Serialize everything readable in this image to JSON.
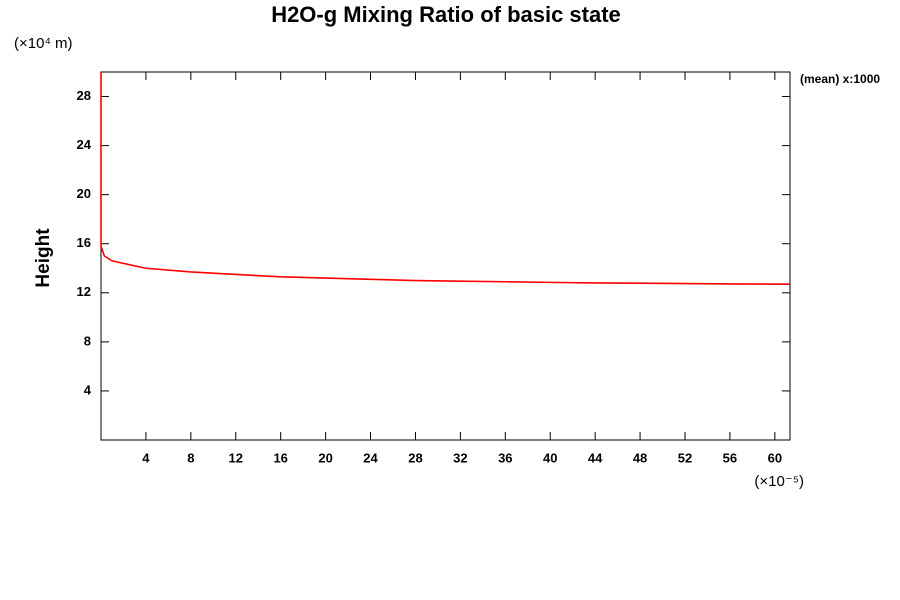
{
  "chart_data": {
    "type": "line",
    "title": "H2O-g Mixing Ratio of basic state",
    "y_unit_label": "(×10⁴ m)",
    "y_label": "Height",
    "x_unit_label": "(×10⁻⁵)",
    "annotation": "(mean) x:1000",
    "xlim": [
      0,
      61.35
    ],
    "ylim": [
      0,
      30
    ],
    "xticks": [
      4,
      8,
      12,
      16,
      20,
      24,
      28,
      32,
      36,
      40,
      44,
      48,
      52,
      56,
      60
    ],
    "yticks": [
      4,
      8,
      12,
      16,
      20,
      24,
      28
    ],
    "series": [
      {
        "color": "#ff0000",
        "x": [
          0,
          0,
          0.3,
          1,
          2,
          4,
          8,
          12,
          16,
          20,
          24,
          28,
          32,
          36,
          40,
          44,
          48,
          52,
          56,
          61.35
        ],
        "values": [
          30,
          15.8,
          15.0,
          14.6,
          14.4,
          14.0,
          13.7,
          13.5,
          13.3,
          13.2,
          13.1,
          13.0,
          12.95,
          12.9,
          12.85,
          12.8,
          12.78,
          12.75,
          12.72,
          12.7
        ]
      }
    ]
  }
}
